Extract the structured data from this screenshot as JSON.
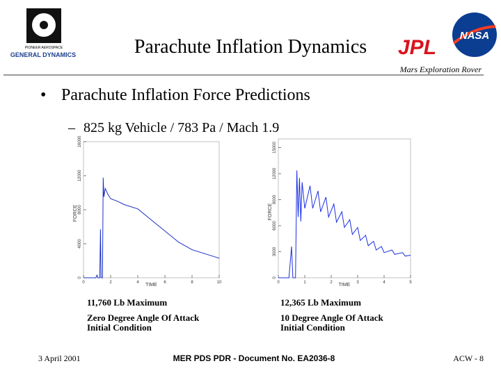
{
  "header": {
    "title": "Parachute Inflation Dynamics",
    "subtitle": "Mars Exploration Rover",
    "logos": {
      "pioneer": "PIONEER AEROSPACE",
      "gd": "GENERAL DYNAMICS",
      "jpl": "JPL",
      "nasa": "NASA"
    }
  },
  "bullet": "Parachute Inflation Force Predictions",
  "sub_bullet": "825 kg Vehicle / 783 Pa / Mach 1.9",
  "chart_data": [
    {
      "type": "line",
      "xlabel": "TIME",
      "ylabel": "FORCE",
      "color": "#1a2fc4",
      "xlim": [
        0,
        10
      ],
      "xticks": [
        0,
        2,
        4,
        6,
        8,
        10
      ],
      "ylim": [
        0,
        16000
      ],
      "yticks": [
        0,
        4000,
        8000,
        12000,
        16000
      ],
      "x": [
        0,
        0.9,
        1.0,
        1.05,
        1.2,
        1.25,
        1.3,
        1.4,
        1.45,
        1.5,
        1.6,
        1.8,
        2.0,
        2.5,
        3,
        4,
        5,
        6,
        7,
        8,
        9,
        10
      ],
      "values": [
        0,
        0,
        300,
        0,
        0,
        5700,
        0,
        0,
        11760,
        9500,
        10500,
        9800,
        9300,
        9000,
        8600,
        8100,
        6800,
        5500,
        4200,
        3300,
        2800,
        2300
      ],
      "annotations": [
        "11,760 Lb Maximum",
        "Zero Degree Angle Of Attack",
        "Initial Condition"
      ]
    },
    {
      "type": "line",
      "xlabel": "TIME",
      "ylabel": "FORCE",
      "color": "#1a2fe0",
      "xlim": [
        0,
        5
      ],
      "xticks": [
        0,
        1,
        2,
        3,
        4,
        5
      ],
      "ylim": [
        0,
        16000
      ],
      "yticks": [
        0,
        3000,
        6000,
        9000,
        12000,
        15000
      ],
      "x": [
        0,
        0.4,
        0.5,
        0.55,
        0.65,
        0.7,
        0.75,
        0.8,
        0.85,
        0.9,
        1.0,
        1.2,
        1.3,
        1.5,
        1.6,
        1.8,
        1.9,
        2.1,
        2.2,
        2.4,
        2.5,
        2.7,
        2.8,
        3.0,
        3.1,
        3.3,
        3.4,
        3.6,
        3.7,
        3.9,
        4.0,
        4.3,
        4.4,
        4.7,
        4.8,
        5.0
      ],
      "values": [
        0,
        0,
        3600,
        0,
        0,
        12365,
        7000,
        11500,
        6500,
        11000,
        8000,
        10600,
        8000,
        10000,
        7600,
        9300,
        7000,
        8500,
        6400,
        7600,
        5800,
        6700,
        5000,
        5800,
        4300,
        4900,
        3700,
        4200,
        3200,
        3600,
        2900,
        3200,
        2700,
        2900,
        2500,
        2600
      ],
      "annotations": [
        "12,365 Lb Maximum",
        "10 Degree Angle Of Attack",
        "Initial Condition"
      ]
    }
  ],
  "footer": {
    "date": "3 April 2001",
    "document": "MER PDS PDR - Document No. EA2036-8",
    "page": "ACW - 8"
  }
}
